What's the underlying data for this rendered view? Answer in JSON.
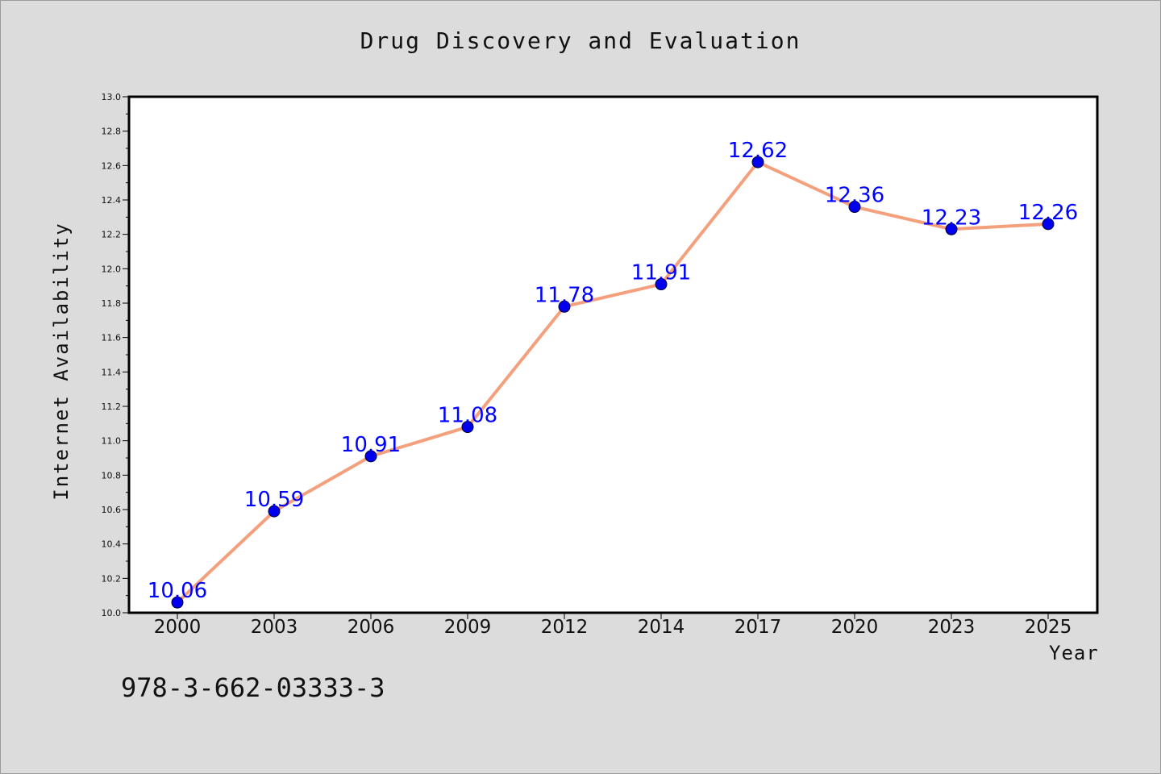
{
  "chart_data": {
    "type": "line",
    "title": "Drug Discovery and Evaluation",
    "xlabel": "Year",
    "ylabel": "Internet Availability",
    "categories": [
      "2000",
      "2003",
      "2006",
      "2009",
      "2012",
      "2014",
      "2017",
      "2020",
      "2023",
      "2025"
    ],
    "series": [
      {
        "values": [
          10.06,
          10.59,
          10.91,
          11.08,
          11.78,
          11.91,
          12.62,
          12.36,
          12.23,
          12.26
        ],
        "labels": [
          "10.06",
          "10.59",
          "10.91",
          "11.08",
          "11.78",
          "11.91",
          "12.62",
          "12.36",
          "12.23",
          "12.26"
        ],
        "line_color": "#f4a07c",
        "marker_color": "#0000ee",
        "label_color": "#0000ff"
      }
    ],
    "ylim": [
      10.0,
      13.0
    ],
    "yticks": [
      "10.0",
      "10.2",
      "10.4",
      "10.6",
      "10.8",
      "11.0",
      "11.2",
      "11.4",
      "11.6",
      "11.8",
      "12.0",
      "12.2",
      "12.4",
      "12.6",
      "12.8",
      "13.0"
    ],
    "grid": false,
    "legend": "none"
  },
  "footer": {
    "isbn": "978-3-662-03333-3"
  },
  "colors": {
    "background": "#dcdcdc",
    "plot_background": "#ffffff"
  }
}
